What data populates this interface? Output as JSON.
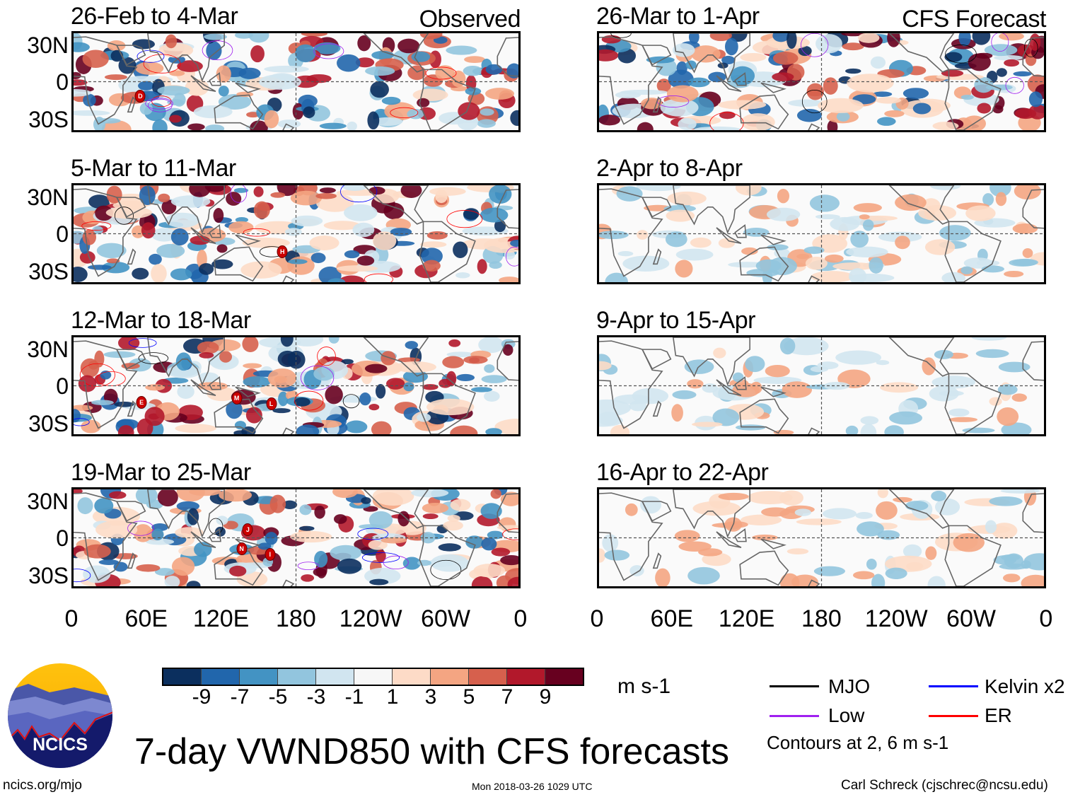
{
  "colors": {
    "scale": [
      "#0b2f5e",
      "#2166ac",
      "#4393c3",
      "#92c5de",
      "#d1e5f0",
      "#f7f7f7",
      "#fddbc7",
      "#f4a582",
      "#d6604d",
      "#b2182b",
      "#67001f"
    ],
    "mjo": "#000000",
    "kelvin": "#0000ff",
    "low": "#a020f0",
    "er": "#ff0000",
    "coast": "#666666"
  },
  "lat_labels": [
    "30N",
    "0",
    "30S"
  ],
  "lon_labels": [
    "0",
    "60E",
    "120E",
    "180",
    "120W",
    "60W",
    "0"
  ],
  "panels": [
    {
      "title": "26-Feb to 4-Mar",
      "tag": "Observed",
      "intensity": 1,
      "storms": [
        {
          "letter": "D",
          "lon": 54,
          "lat": -12
        }
      ]
    },
    {
      "title": "5-Mar to 11-Mar",
      "tag": "",
      "intensity": 1,
      "storms": [
        {
          "letter": "H",
          "lon": 169,
          "lat": -15
        }
      ]
    },
    {
      "title": "12-Mar to 18-Mar",
      "tag": "",
      "intensity": 1,
      "storms": [
        {
          "letter": "E",
          "lon": 55,
          "lat": -14
        },
        {
          "letter": "M",
          "lon": 132,
          "lat": -10
        },
        {
          "letter": "L",
          "lon": 160,
          "lat": -15
        }
      ]
    },
    {
      "title": "19-Mar to 25-Mar",
      "tag": "",
      "intensity": 1,
      "storms": [
        {
          "letter": "J",
          "lon": 141,
          "lat": 7
        },
        {
          "letter": "N",
          "lon": 136,
          "lat": -9
        },
        {
          "letter": "I",
          "lon": 159,
          "lat": -14
        }
      ]
    },
    {
      "title": "26-Mar to 1-Apr",
      "tag": "CFS Forecast",
      "intensity": 1,
      "storms": []
    },
    {
      "title": "2-Apr to 8-Apr",
      "tag": "",
      "intensity": 0.5,
      "storms": []
    },
    {
      "title": "9-Apr to 15-Apr",
      "tag": "",
      "intensity": 0.3,
      "storms": []
    },
    {
      "title": "16-Apr to 22-Apr",
      "tag": "",
      "intensity": 0.3,
      "storms": []
    }
  ],
  "colorbar": {
    "labels": [
      "-9",
      "-7",
      "-5",
      "-3",
      "-1",
      "1",
      "3",
      "5",
      "7",
      "9"
    ],
    "units": "m s-1"
  },
  "legend": {
    "mjo": "MJO",
    "kelvin": "Kelvin x2",
    "low": "Low",
    "er": "ER",
    "contours_note": "Contours at 2, 6 m s-1"
  },
  "logo_text": "NCICS",
  "title": "7-day VWND850 with CFS forecasts",
  "footer": {
    "url": "ncics.org/mjo",
    "timestamp": "Mon 2018-03-26 1029 UTC",
    "credit": "Carl Schreck (cjschrec@ncsu.edu)"
  }
}
